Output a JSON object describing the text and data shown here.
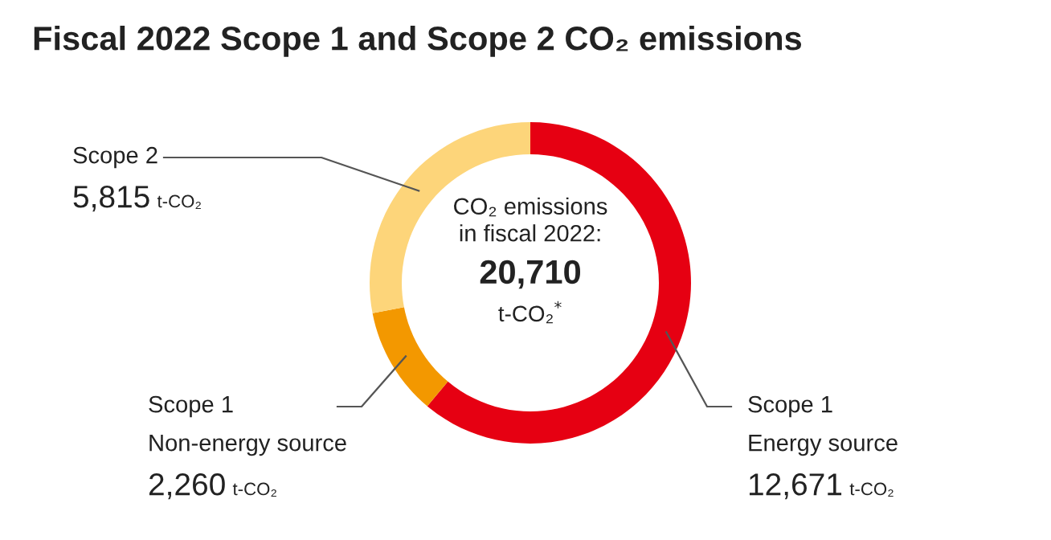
{
  "chart_data": {
    "type": "donut",
    "title": "Fiscal 2022 Scope 1 and Scope 2 CO₂ emissions",
    "categories": [
      "Scope 1\nEnergy source",
      "Scope 1\nNon-energy source",
      "Scope 2"
    ],
    "values": [
      12671,
      2260,
      5815
    ],
    "colors": [
      "#e60012",
      "#f39800",
      "#fdd57a"
    ],
    "value_labels": [
      "12,671 t-CO₂",
      "2,260 t-CO₂",
      "5,815 t-CO₂"
    ],
    "annotations": [
      "CO₂ emissions\nin fiscal 2022:",
      "20,710",
      "t-CO₂$^{*}$"
    ],
    "legend": false
  }
}
